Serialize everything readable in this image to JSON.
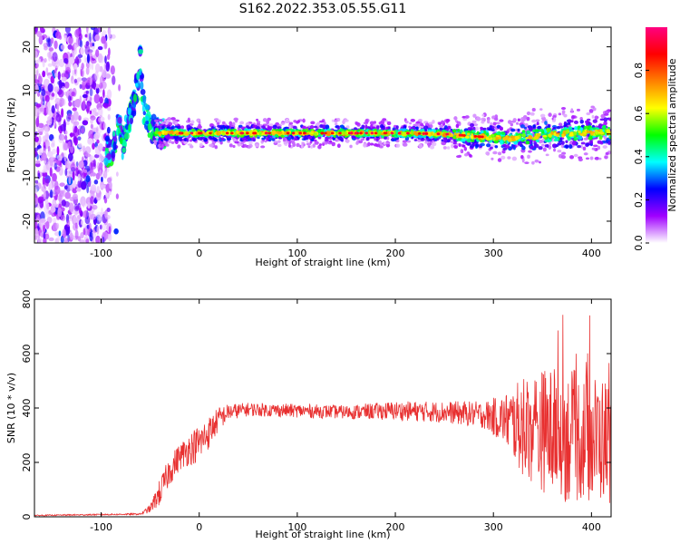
{
  "title": "S162.2022.353.05.55.G11",
  "chart_data": [
    {
      "type": "heatmap",
      "title": "S162.2022.353.05.55.G11",
      "xlabel": "Height of straight line (km)",
      "ylabel": "Frequency (Hz)",
      "xlim": [
        -168,
        420
      ],
      "ylim": [
        -25,
        24.5
      ],
      "xticks": [
        -100,
        0,
        100,
        200,
        300,
        400
      ],
      "yticks": [
        -20,
        -10,
        0,
        10,
        20
      ],
      "ridge": [
        [
          -90,
          -4
        ],
        [
          -85,
          -1
        ],
        [
          -82,
          3
        ],
        [
          -78,
          -3
        ],
        [
          -75,
          1
        ],
        [
          -70,
          5
        ],
        [
          -65,
          9
        ],
        [
          -62,
          13
        ],
        [
          -60,
          17
        ],
        [
          -57,
          6
        ],
        [
          -54,
          4
        ],
        [
          -50,
          2
        ],
        [
          -47,
          1
        ],
        [
          -44,
          0.5
        ],
        [
          -40,
          0
        ],
        [
          -35,
          0.3
        ],
        [
          -30,
          0.5
        ],
        [
          -20,
          0.2
        ],
        [
          0,
          0.2
        ],
        [
          50,
          0.2
        ],
        [
          100,
          0.2
        ],
        [
          150,
          0.2
        ],
        [
          200,
          0.2
        ],
        [
          250,
          0
        ],
        [
          280,
          -0.5
        ],
        [
          300,
          -0.8
        ],
        [
          320,
          -1
        ],
        [
          340,
          -0.5
        ],
        [
          370,
          0
        ],
        [
          400,
          0.3
        ],
        [
          420,
          0.5
        ]
      ],
      "grid": false,
      "colorbar": {
        "label": "Normalized spectral amplitude",
        "ticks": [
          0.0,
          0.2,
          0.4,
          0.6,
          0.8
        ],
        "range": [
          0,
          1
        ],
        "colormap": [
          "#ffffff",
          "#a000ff",
          "#0000ff",
          "#00ffff",
          "#00ff00",
          "#ffff00",
          "#ff8000",
          "#ff0000",
          "#ff0080"
        ]
      }
    },
    {
      "type": "line",
      "xlabel": "Height of straight line (km)",
      "ylabel": "SNR (10 * v/v)",
      "xlim": [
        -168,
        420
      ],
      "ylim": [
        0,
        800
      ],
      "xticks": [
        -100,
        0,
        100,
        200,
        300,
        400
      ],
      "yticks": [
        0,
        200,
        400,
        600,
        800
      ],
      "grid": false,
      "series": [
        {
          "color": "#e83030",
          "envelope": [
            [
              -168,
              5,
              2
            ],
            [
              -60,
              10,
              3
            ],
            [
              -50,
              30,
              15
            ],
            [
              -40,
              90,
              50
            ],
            [
              -30,
              170,
              55
            ],
            [
              -20,
              220,
              50
            ],
            [
              -10,
              250,
              60
            ],
            [
              0,
              270,
              70
            ],
            [
              10,
              310,
              60
            ],
            [
              20,
              360,
              45
            ],
            [
              30,
              385,
              30
            ],
            [
              50,
              395,
              25
            ],
            [
              100,
              390,
              25
            ],
            [
              150,
              385,
              25
            ],
            [
              200,
              390,
              35
            ],
            [
              250,
              385,
              40
            ],
            [
              290,
              375,
              50
            ],
            [
              310,
              360,
              90
            ],
            [
              330,
              330,
              180
            ],
            [
              350,
              320,
              230
            ],
            [
              370,
              300,
              250
            ],
            [
              400,
              290,
              240
            ],
            [
              420,
              280,
              230
            ]
          ]
        }
      ]
    }
  ]
}
